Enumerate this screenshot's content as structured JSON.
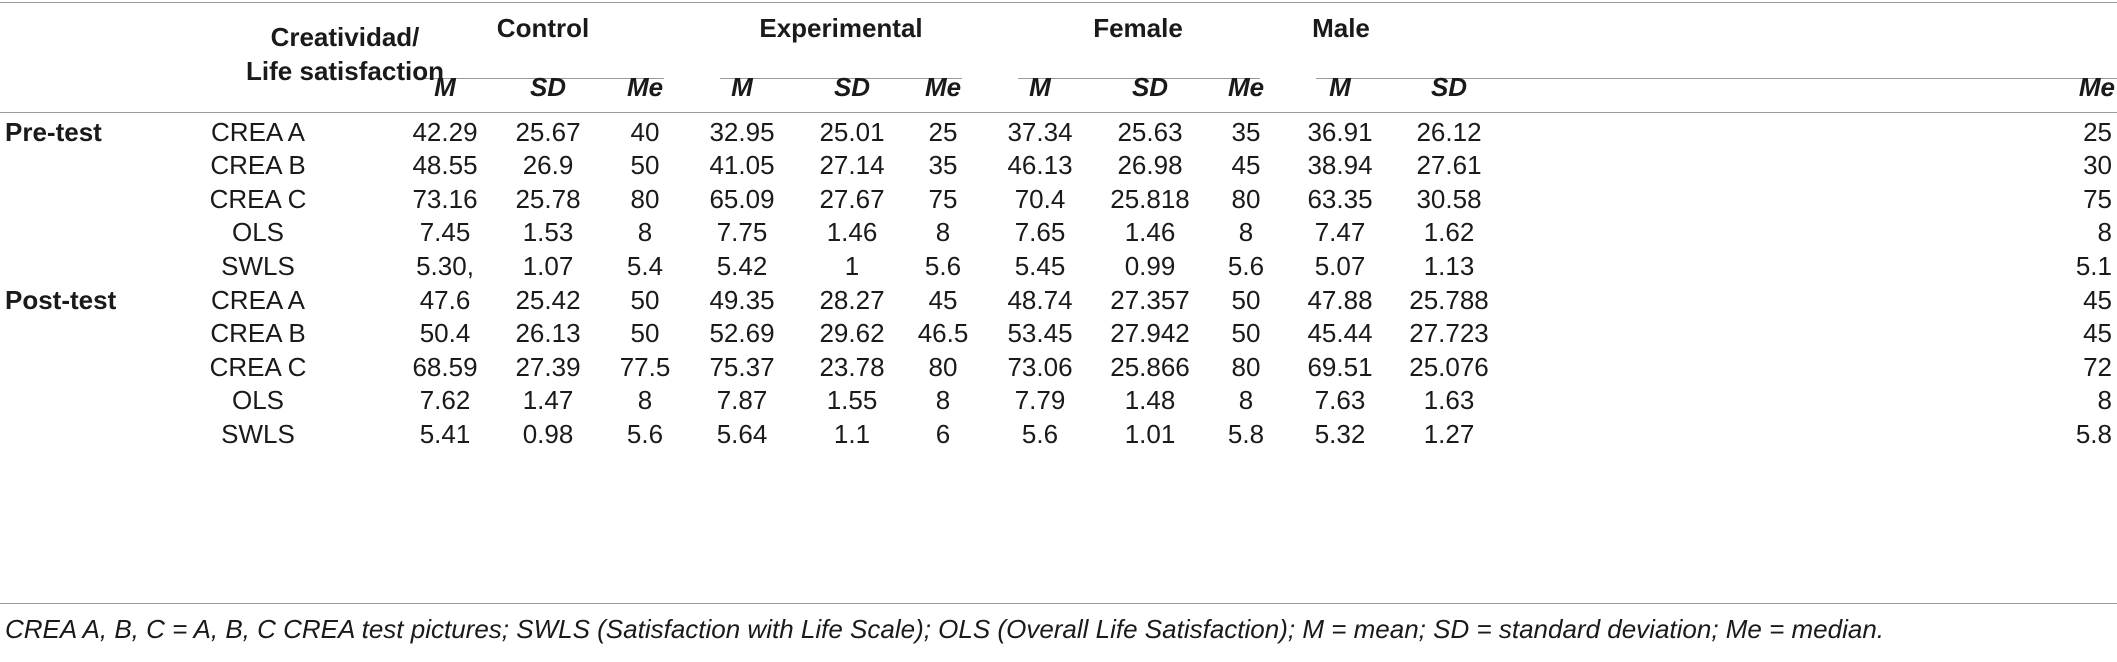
{
  "table": {
    "corner_header_line1": "Creatividad/",
    "corner_header_line2": "Life satisfaction",
    "groups": [
      "Control",
      "Experimental",
      "Female",
      "Male"
    ],
    "stat_headers": [
      "M",
      "SD",
      "Me"
    ],
    "sections": [
      {
        "label": "Pre-test",
        "rows": [
          {
            "measure": "CREA A",
            "values": [
              "42.29",
              "25.67",
              "40",
              "32.95",
              "25.01",
              "25",
              "37.34",
              "25.63",
              "35",
              "36.91",
              "26.12",
              "25"
            ]
          },
          {
            "measure": "CREA B",
            "values": [
              "48.55",
              "26.9",
              "50",
              "41.05",
              "27.14",
              "35",
              "46.13",
              "26.98",
              "45",
              "38.94",
              "27.61",
              "30"
            ]
          },
          {
            "measure": "CREA C",
            "values": [
              "73.16",
              "25.78",
              "80",
              "65.09",
              "27.67",
              "75",
              "70.4",
              "25.818",
              "80",
              "63.35",
              "30.58",
              "75"
            ]
          },
          {
            "measure": "OLS",
            "values": [
              "7.45",
              "1.53",
              "8",
              "7.75",
              "1.46",
              "8",
              "7.65",
              "1.46",
              "8",
              "7.47",
              "1.62",
              "8"
            ]
          },
          {
            "measure": "SWLS",
            "values": [
              "5.30,",
              "1.07",
              "5.4",
              "5.42",
              "1",
              "5.6",
              "5.45",
              "0.99",
              "5.6",
              "5.07",
              "1.13",
              "5.1"
            ]
          }
        ]
      },
      {
        "label": "Post-test",
        "rows": [
          {
            "measure": "CREA A",
            "values": [
              "47.6",
              "25.42",
              "50",
              "49.35",
              "28.27",
              "45",
              "48.74",
              "27.357",
              "50",
              "47.88",
              "25.788",
              "45"
            ]
          },
          {
            "measure": "CREA B",
            "values": [
              "50.4",
              "26.13",
              "50",
              "52.69",
              "29.62",
              "46.5",
              "53.45",
              "27.942",
              "50",
              "45.44",
              "27.723",
              "45"
            ]
          },
          {
            "measure": "CREA C",
            "values": [
              "68.59",
              "27.39",
              "77.5",
              "75.37",
              "23.78",
              "80",
              "73.06",
              "25.866",
              "80",
              "69.51",
              "25.076",
              "72"
            ]
          },
          {
            "measure": "OLS",
            "values": [
              "7.62",
              "1.47",
              "8",
              "7.87",
              "1.55",
              "8",
              "7.79",
              "1.48",
              "8",
              "7.63",
              "1.63",
              "8"
            ]
          },
          {
            "measure": "SWLS",
            "values": [
              "5.41",
              "0.98",
              "5.6",
              "5.64",
              "1.1",
              "6",
              "5.6",
              "1.01",
              "5.8",
              "5.32",
              "1.27",
              "5.8"
            ]
          }
        ]
      }
    ],
    "footnote": "CREA A, B, C = A, B, C CREA test pictures; SWLS (Satisfaction with Life Scale); OLS (Overall Life Satisfaction); M = mean; SD = standard deviation; Me = median."
  }
}
